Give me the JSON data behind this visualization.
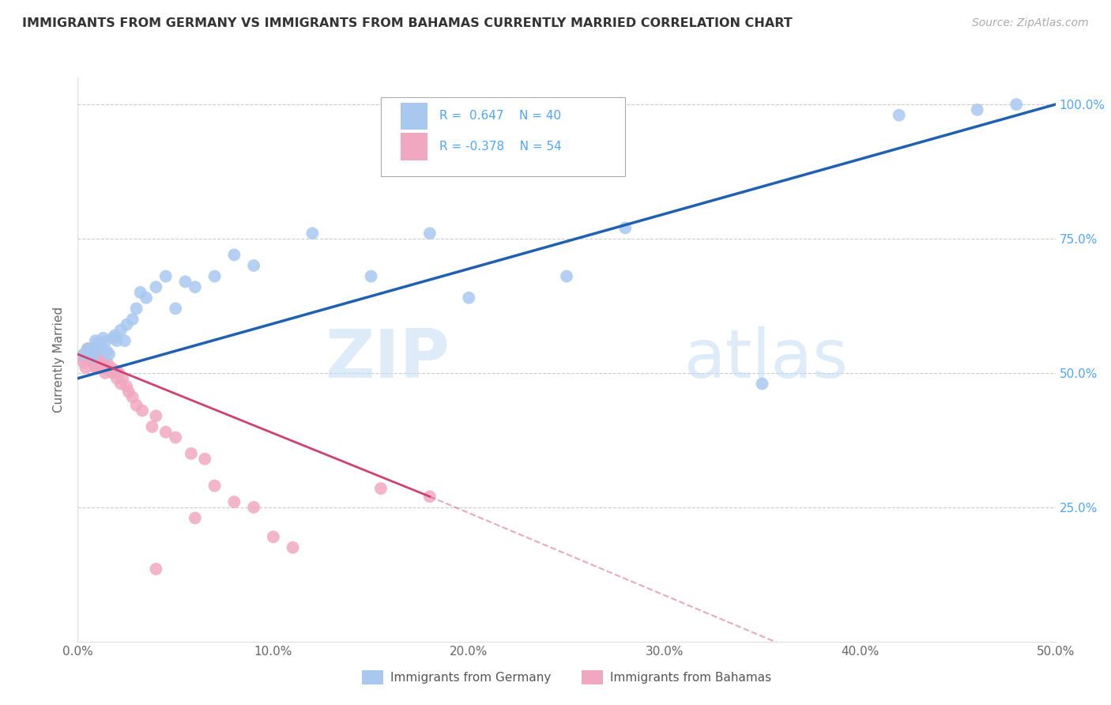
{
  "title": "IMMIGRANTS FROM GERMANY VS IMMIGRANTS FROM BAHAMAS CURRENTLY MARRIED CORRELATION CHART",
  "source": "Source: ZipAtlas.com",
  "ylabel": "Currently Married",
  "xlim": [
    0.0,
    0.5
  ],
  "ylim": [
    0.0,
    1.05
  ],
  "xtick_labels": [
    "0.0%",
    "10.0%",
    "20.0%",
    "30.0%",
    "40.0%",
    "50.0%"
  ],
  "xtick_vals": [
    0.0,
    0.1,
    0.2,
    0.3,
    0.4,
    0.5
  ],
  "ytick_labels": [
    "25.0%",
    "50.0%",
    "75.0%",
    "100.0%"
  ],
  "ytick_vals": [
    0.25,
    0.5,
    0.75,
    1.0
  ],
  "r_germany": 0.647,
  "n_germany": 40,
  "r_bahamas": -0.378,
  "n_bahamas": 54,
  "germany_color": "#a8c8f0",
  "bahamas_color": "#f0a8c0",
  "germany_line_color": "#2060b0",
  "bahamas_line_color": "#d04070",
  "watermark_zip": "ZIP",
  "watermark_atlas": "atlas",
  "germany_scatter_x": [
    0.003,
    0.005,
    0.006,
    0.008,
    0.009,
    0.01,
    0.011,
    0.012,
    0.013,
    0.014,
    0.015,
    0.016,
    0.018,
    0.019,
    0.02,
    0.022,
    0.024,
    0.025,
    0.028,
    0.03,
    0.032,
    0.035,
    0.04,
    0.045,
    0.05,
    0.055,
    0.06,
    0.07,
    0.08,
    0.09,
    0.12,
    0.15,
    0.18,
    0.2,
    0.25,
    0.28,
    0.35,
    0.42,
    0.46,
    0.48
  ],
  "germany_scatter_y": [
    0.535,
    0.545,
    0.54,
    0.53,
    0.56,
    0.555,
    0.545,
    0.55,
    0.565,
    0.558,
    0.54,
    0.535,
    0.565,
    0.57,
    0.56,
    0.58,
    0.56,
    0.59,
    0.6,
    0.62,
    0.65,
    0.64,
    0.66,
    0.68,
    0.62,
    0.67,
    0.66,
    0.68,
    0.72,
    0.7,
    0.76,
    0.68,
    0.76,
    0.64,
    0.68,
    0.77,
    0.48,
    0.98,
    0.99,
    1.0
  ],
  "bahamas_scatter_x": [
    0.002,
    0.003,
    0.004,
    0.005,
    0.005,
    0.006,
    0.006,
    0.007,
    0.007,
    0.008,
    0.008,
    0.008,
    0.009,
    0.009,
    0.01,
    0.01,
    0.01,
    0.011,
    0.011,
    0.012,
    0.012,
    0.013,
    0.013,
    0.014,
    0.015,
    0.015,
    0.016,
    0.017,
    0.018,
    0.019,
    0.02,
    0.021,
    0.022,
    0.023,
    0.025,
    0.026,
    0.028,
    0.03,
    0.033,
    0.038,
    0.04,
    0.045,
    0.05,
    0.058,
    0.065,
    0.07,
    0.08,
    0.09,
    0.1,
    0.11,
    0.04,
    0.06,
    0.155,
    0.18
  ],
  "bahamas_scatter_y": [
    0.53,
    0.52,
    0.51,
    0.53,
    0.545,
    0.535,
    0.545,
    0.53,
    0.54,
    0.535,
    0.52,
    0.54,
    0.525,
    0.51,
    0.53,
    0.54,
    0.51,
    0.52,
    0.53,
    0.51,
    0.52,
    0.51,
    0.52,
    0.5,
    0.51,
    0.52,
    0.505,
    0.51,
    0.5,
    0.505,
    0.49,
    0.5,
    0.48,
    0.49,
    0.475,
    0.465,
    0.455,
    0.44,
    0.43,
    0.4,
    0.42,
    0.39,
    0.38,
    0.35,
    0.34,
    0.29,
    0.26,
    0.25,
    0.195,
    0.175,
    0.135,
    0.23,
    0.285,
    0.27
  ]
}
